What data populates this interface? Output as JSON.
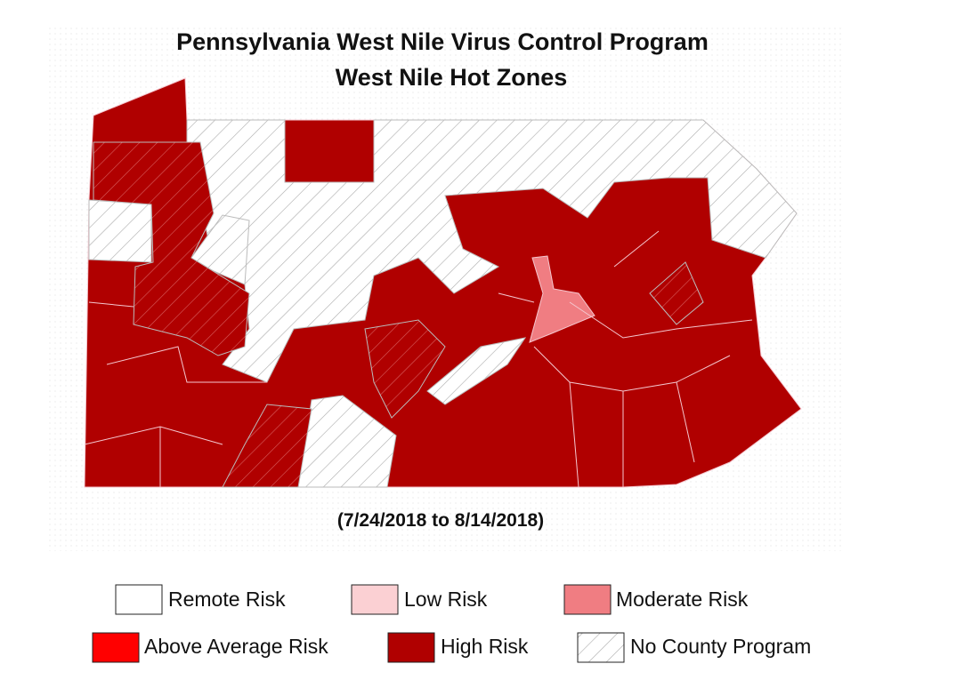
{
  "header": {
    "title": "Pennsylvania West Nile Virus Control Program",
    "subtitle": "West Nile Hot Zones"
  },
  "date_range": "(7/24/2018 to 8/14/2018)",
  "legend": {
    "items": [
      "Remote Risk",
      "Low Risk",
      "Moderate Risk",
      "Above Average Risk",
      "High Risk",
      "No County Program"
    ]
  }
}
